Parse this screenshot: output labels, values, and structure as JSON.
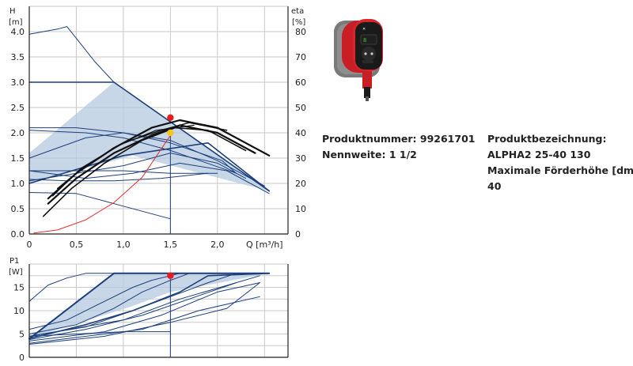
{
  "chart_data": [
    {
      "type": "line",
      "name_hint": "pump-curve",
      "ylabel_left": [
        "H",
        "[m]"
      ],
      "ylabel_right": [
        "eta",
        "[%]"
      ],
      "xlabel": "Q [m³/h]",
      "xlim": [
        0,
        2.75
      ],
      "ylim": [
        0,
        4.5
      ],
      "ylim_right": [
        0,
        90
      ],
      "xticks": [
        "0",
        "0,5",
        "1,0",
        "1,5",
        "2,0"
      ],
      "xtick_values": [
        0,
        0.5,
        1.0,
        1.5,
        2.0
      ],
      "yticks": [
        "0.0",
        "0.5",
        "1.0",
        "1.5",
        "2.0",
        "2.5",
        "3.0",
        "3.5",
        "4.0"
      ],
      "ytick_values": [
        0,
        0.5,
        1.0,
        1.5,
        2.0,
        2.5,
        3.0,
        3.5,
        4.0
      ],
      "yticks_right": [
        "0",
        "10",
        "20",
        "30",
        "40",
        "50",
        "60",
        "70",
        "80"
      ],
      "grid": true,
      "operating_point": {
        "x": 1.5,
        "y": 2.0
      },
      "duty_point": {
        "x": 1.5,
        "y": 2.3
      },
      "shaded_region": [
        [
          0,
          1.0
        ],
        [
          0,
          1.6
        ],
        [
          0.9,
          3.0
        ],
        [
          2.55,
          0.85
        ],
        [
          1.1,
          1.55
        ],
        [
          0,
          1.0
        ]
      ],
      "series": [
        {
          "color": "#1c3f7c",
          "width": 1.6,
          "x": [
            0,
            0.9,
            2.55
          ],
          "y": [
            3.0,
            3.0,
            0.85
          ]
        },
        {
          "color": "#1c3f7c",
          "width": 1.6,
          "x": [
            0,
            1.0,
            1.9,
            2.55
          ],
          "y": [
            1.0,
            1.55,
            1.8,
            0.85
          ]
        },
        {
          "color": "#1c3f7c",
          "width": 1.0,
          "x": [
            0,
            0.6,
            1.0,
            1.5,
            2.05,
            2.2
          ],
          "y": [
            1.5,
            1.9,
            2.0,
            1.8,
            1.45,
            1.2
          ]
        },
        {
          "color": "#1c3f7c",
          "width": 1.0,
          "x": [
            0,
            0.5,
            1.0,
            1.5,
            2.0,
            2.5
          ],
          "y": [
            2.1,
            2.1,
            2.0,
            1.85,
            1.45,
            0.95
          ]
        },
        {
          "color": "#1c3f7c",
          "width": 1.0,
          "x": [
            0,
            0.6,
            1.0,
            1.5,
            2.2
          ],
          "y": [
            2.05,
            2.0,
            1.9,
            1.65,
            1.2
          ]
        },
        {
          "color": "#1c3f7c",
          "width": 1.0,
          "x": [
            0,
            0.5,
            1.0,
            1.5,
            2.0,
            2.3
          ],
          "y": [
            1.05,
            1.2,
            1.35,
            1.6,
            1.4,
            1.1
          ]
        },
        {
          "color": "#1c3f7c",
          "width": 1.0,
          "x": [
            0,
            1.0,
            1.5,
            2.0
          ],
          "y": [
            1.25,
            1.25,
            1.2,
            1.2
          ]
        },
        {
          "color": "#1c3f7c",
          "width": 1.0,
          "x": [
            0,
            0.5,
            1.0,
            1.5
          ],
          "y": [
            0.82,
            0.8,
            0.55,
            0.3
          ]
        },
        {
          "color": "#1c3f7c",
          "width": 1.0,
          "x": [
            0,
            0.3,
            0.4,
            0.7,
            0.9
          ],
          "y": [
            3.95,
            4.05,
            4.1,
            3.4,
            3.0
          ]
        },
        {
          "color": "#1c3f7c",
          "width": 1.0,
          "x": [
            0,
            0.6,
            1.1,
            1.6,
            2.1,
            2.55
          ],
          "y": [
            1.25,
            1.1,
            1.2,
            1.4,
            1.25,
            0.8
          ]
        },
        {
          "color": "#1c3f7c",
          "width": 1.0,
          "x": [
            0,
            0.4,
            0.9,
            1.4,
            1.9
          ],
          "y": [
            1.08,
            1.05,
            1.05,
            1.1,
            1.2
          ]
        },
        {
          "color": "#111111",
          "width": 2.2,
          "x": [
            0.2,
            0.5,
            0.9,
            1.3,
            1.6,
            2.0,
            2.55
          ],
          "y": [
            0.7,
            1.2,
            1.7,
            2.1,
            2.25,
            2.1,
            1.55
          ]
        },
        {
          "color": "#111111",
          "width": 2.2,
          "x": [
            0.2,
            0.5,
            0.9,
            1.3,
            1.6,
            2.0,
            2.4
          ],
          "y": [
            0.6,
            1.1,
            1.6,
            1.95,
            2.15,
            2.0,
            1.6
          ]
        },
        {
          "color": "#111111",
          "width": 1.6,
          "x": [
            0.15,
            0.45,
            0.8,
            1.2,
            1.55,
            1.9,
            2.3
          ],
          "y": [
            0.35,
            0.9,
            1.4,
            1.85,
            2.1,
            2.05,
            1.65
          ]
        },
        {
          "color": "#111111",
          "width": 1.4,
          "x": [
            0.3,
            0.6,
            1.0,
            1.4,
            1.7,
            2.1
          ],
          "y": [
            0.9,
            1.35,
            1.8,
            2.05,
            2.2,
            2.05
          ]
        },
        {
          "color": "#111111",
          "width": 1.2,
          "x": [
            0.25,
            0.55,
            0.95,
            1.35,
            1.75
          ],
          "y": [
            0.75,
            1.3,
            1.75,
            2.05,
            2.15
          ]
        },
        {
          "color": "#e53030",
          "width": 1.0,
          "x": [
            0.05,
            0.3,
            0.6,
            0.9,
            1.2,
            1.5
          ],
          "y": [
            0.02,
            0.08,
            0.28,
            0.62,
            1.12,
            1.95
          ]
        }
      ]
    },
    {
      "type": "line",
      "name_hint": "power-curve",
      "ylabel_left": [
        "P1",
        "[W]"
      ],
      "xlim": [
        0,
        2.75
      ],
      "ylim": [
        0,
        20
      ],
      "yticks": [
        "0",
        "5",
        "10",
        "15"
      ],
      "ytick_values": [
        0,
        5,
        10,
        15
      ],
      "xtick_values": [
        0,
        0.5,
        1.0,
        1.5,
        2.0
      ],
      "grid": true,
      "operating_point": {
        "x": 1.5,
        "y": 17.5
      },
      "shaded_region": [
        [
          0,
          4.0
        ],
        [
          0.9,
          18.0
        ],
        [
          2.55,
          18.0
        ],
        [
          1.5,
          14.0
        ],
        [
          1.1,
          11.0
        ],
        [
          0,
          4.0
        ]
      ],
      "series": [
        {
          "color": "#1c3f7c",
          "width": 2.0,
          "x": [
            0,
            0.9,
            2.55
          ],
          "y": [
            4.0,
            18.0,
            18.0
          ]
        },
        {
          "color": "#1c3f7c",
          "width": 1.6,
          "x": [
            0,
            0.6,
            1.1,
            1.6,
            1.9,
            2.55
          ],
          "y": [
            4.0,
            7.0,
            10.0,
            14.0,
            17.5,
            18.0
          ]
        },
        {
          "color": "#1c3f7c",
          "width": 1.0,
          "x": [
            0,
            0.2,
            0.4,
            0.6,
            0.9,
            2.55
          ],
          "y": [
            12.0,
            15.5,
            17.0,
            18.0,
            18.0,
            18.0
          ]
        },
        {
          "color": "#1c3f7c",
          "width": 1.0,
          "x": [
            0,
            0.4,
            0.8,
            1.1,
            1.3,
            1.6
          ],
          "y": [
            6.0,
            8.0,
            12.0,
            15.0,
            16.5,
            18.0
          ]
        },
        {
          "color": "#1c3f7c",
          "width": 1.0,
          "x": [
            0,
            0.5,
            0.9,
            1.2,
            1.5,
            1.7
          ],
          "y": [
            5.0,
            7.0,
            10.5,
            14.0,
            16.5,
            18.0
          ]
        },
        {
          "color": "#1c3f7c",
          "width": 1.0,
          "x": [
            0,
            0.6,
            1.1,
            1.5,
            1.9,
            2.2
          ],
          "y": [
            4.5,
            6.5,
            10.0,
            13.0,
            16.0,
            18.0
          ]
        },
        {
          "color": "#1c3f7c",
          "width": 1.0,
          "x": [
            0,
            0.6,
            1.2,
            1.7,
            2.2,
            2.45
          ],
          "y": [
            3.8,
            6.0,
            9.0,
            12.5,
            16.0,
            17.5
          ]
        },
        {
          "color": "#1c3f7c",
          "width": 1.0,
          "x": [
            0,
            0.8,
            1.4,
            2.0,
            2.45
          ],
          "y": [
            3.5,
            5.5,
            9.0,
            14.0,
            16.0
          ]
        },
        {
          "color": "#1c3f7c",
          "width": 1.0,
          "x": [
            0,
            1.0,
            1.6,
            2.2
          ],
          "y": [
            4.5,
            8.0,
            12.5,
            16.0
          ]
        },
        {
          "color": "#1c3f7c",
          "width": 1.0,
          "x": [
            0,
            1.2,
            1.8,
            2.45
          ],
          "y": [
            3.0,
            6.0,
            10.0,
            13.0
          ]
        },
        {
          "color": "#1c3f7c",
          "width": 1.0,
          "x": [
            0,
            0.8,
            1.5,
            2.1,
            2.45
          ],
          "y": [
            2.8,
            4.5,
            7.5,
            10.5,
            16.0
          ]
        },
        {
          "color": "#1c3f7c",
          "width": 1.0,
          "x": [
            0,
            0.5,
            1.0,
            1.5
          ],
          "y": [
            4.5,
            5.0,
            5.5,
            5.5
          ]
        }
      ]
    }
  ],
  "product": {
    "number_line": "Produktnummer: 99261701",
    "nominal_size_line": "Nennweite: 1 1/2",
    "designation_label": "Produktbezeichnung:",
    "designation_value": "ALPHA2 25-40 130",
    "max_head_label": "Maximale Förderhöhe [dm]:",
    "max_head_value": "40"
  },
  "pump_image": {
    "icon": "pump-product-photo",
    "colors": {
      "body": "#d9242b",
      "insulation": "#7a7a7a",
      "display": "#1a1a1a",
      "accent": "#33cc33"
    }
  },
  "colors": {
    "curve_navy": "#1c3f7c",
    "efficiency_black": "#111111",
    "system_red": "#e53030",
    "shade": "#b5c9df",
    "grid": "#c8c8c8",
    "point_red": "#e81c1c",
    "point_yellow": "#f2c61d"
  }
}
